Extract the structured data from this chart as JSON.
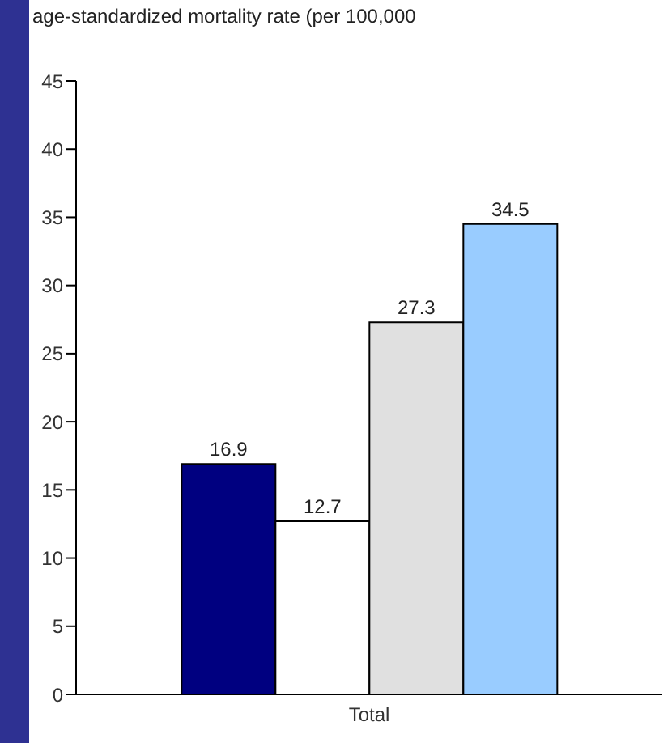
{
  "chart_data": {
    "type": "bar",
    "title": "age-standardized mortality rate (per 100,000",
    "categories": [
      "Total"
    ],
    "series": [
      {
        "color": "#000080",
        "values": [
          16.9
        ]
      },
      {
        "color": "#ffffff",
        "values": [
          12.7
        ]
      },
      {
        "color": "#e0e0e0",
        "values": [
          27.3
        ]
      },
      {
        "color": "#99ccff",
        "values": [
          34.5
        ]
      }
    ],
    "ylim": [
      0,
      45
    ],
    "yticks": [
      0,
      5,
      10,
      15,
      20,
      25,
      30,
      35,
      40,
      45
    ],
    "data_labels": true,
    "grid": false,
    "legend": false
  }
}
